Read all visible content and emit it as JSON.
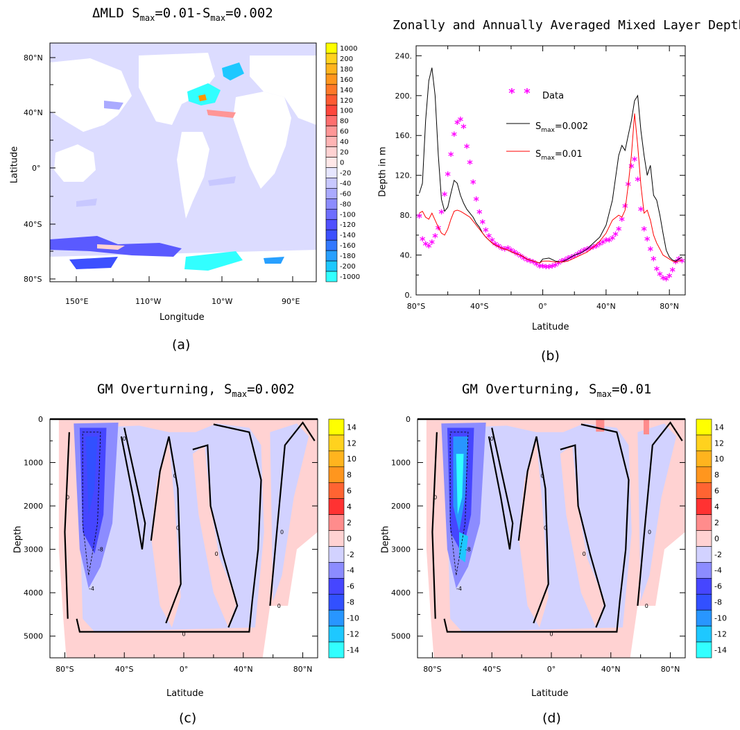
{
  "panels": {
    "a": {
      "title_main": "ΔMLD S",
      "title_sub1": "max",
      "title_mid": "=0.01-S",
      "title_sub2": "max",
      "title_end": "=0.002",
      "caption": "(a)",
      "xlabel": "Longitude",
      "ylabel": "Latitude"
    },
    "b": {
      "title": "Zonally and Annually Averaged Mixed Layer Depth",
      "caption": "(b)",
      "xlabel": "Latitude",
      "ylabel": "Depth in m"
    },
    "c": {
      "title_main": "GM Overturning, S",
      "title_sub": "max",
      "title_end": "=0.002",
      "caption": "(c)",
      "xlabel": "Latitude",
      "ylabel": "Depth"
    },
    "d": {
      "title_main": "GM Overturning, S",
      "title_sub": "max",
      "title_end": "=0.01",
      "caption": "(d)",
      "xlabel": "Latitude",
      "ylabel": "Depth"
    }
  },
  "chart_data": [
    {
      "id": "a",
      "type": "heatmap",
      "xlabel": "Longitude",
      "ylabel": "Latitude",
      "x_ticks": [
        "150°E",
        "110°W",
        "10°W",
        "90°E"
      ],
      "y_ticks": [
        "80°N",
        "40°N",
        "0°",
        "40°S",
        "80°S"
      ],
      "colorbar_labels": [
        "1000",
        "200",
        "180",
        "160",
        "140",
        "120",
        "100",
        "80",
        "60",
        "40",
        "20",
        "0",
        "-20",
        "-40",
        "-60",
        "-80",
        "-100",
        "-120",
        "-140",
        "-160",
        "-180",
        "-200",
        "-1000"
      ],
      "colorbar_colors": [
        "#ffff00",
        "#ffd21e",
        "#ffb41e",
        "#ff961e",
        "#ff7828",
        "#ff5a32",
        "#ff463c",
        "#ff6e6e",
        "#ff9696",
        "#ffb4b4",
        "#ffd2d2",
        "#ffe8e8",
        "#e6e6ff",
        "#c8c8ff",
        "#aaaaff",
        "#8c8cff",
        "#6e6eff",
        "#5050ff",
        "#3c50ff",
        "#3278ff",
        "#28a0ff",
        "#1ec8ff",
        "#32ffff"
      ]
    },
    {
      "id": "b",
      "type": "line",
      "xlabel": "Latitude",
      "ylabel": "Depth in m",
      "xlim": [
        -80,
        90
      ],
      "ylim": [
        0,
        250
      ],
      "x_ticks": [
        "80°S",
        "40°S",
        "0°",
        "40°N",
        "80°N"
      ],
      "y_ticks": [
        "0.",
        "40.",
        "80.",
        "120.",
        "160.",
        "200.",
        "240."
      ],
      "legend": [
        {
          "label": "Data",
          "sub": "",
          "tail": ""
        },
        {
          "label": "S",
          "sub": "max",
          "tail": "=0.002"
        },
        {
          "label": "S",
          "sub": "max",
          "tail": "=0.01"
        }
      ],
      "series": [
        {
          "name": "Data",
          "color": "#ff00ff",
          "style": "markers",
          "x": [
            -78,
            -76,
            -74,
            -72,
            -70,
            -68,
            -66,
            -64,
            -62,
            -60,
            -58,
            -56,
            -54,
            -52,
            -50,
            -48,
            -46,
            -44,
            -42,
            -40,
            -38,
            -36,
            -34,
            -32,
            -30,
            -28,
            -26,
            -24,
            -22,
            -20,
            -18,
            -16,
            -14,
            -12,
            -10,
            -8,
            -6,
            -4,
            -2,
            0,
            2,
            4,
            6,
            8,
            10,
            12,
            14,
            16,
            18,
            20,
            22,
            24,
            26,
            28,
            30,
            32,
            34,
            36,
            38,
            40,
            42,
            44,
            46,
            48,
            50,
            52,
            54,
            56,
            58,
            60,
            62,
            64,
            66,
            68,
            70,
            72,
            74,
            76,
            78,
            80,
            82,
            84,
            86,
            88
          ],
          "y": [
            78,
            55,
            50,
            48,
            52,
            58,
            66,
            82,
            100,
            120,
            140,
            160,
            172,
            175,
            168,
            148,
            132,
            112,
            95,
            82,
            72,
            64,
            58,
            54,
            50,
            48,
            46,
            45,
            46,
            44,
            42,
            40,
            38,
            36,
            34,
            33,
            32,
            30,
            28,
            28,
            27,
            27,
            28,
            29,
            31,
            33,
            34,
            36,
            37,
            38,
            40,
            42,
            44,
            45,
            46,
            47,
            48,
            50,
            52,
            54,
            54,
            56,
            60,
            65,
            75,
            88,
            110,
            128,
            135,
            115,
            85,
            65,
            55,
            45,
            35,
            25,
            20,
            16,
            15,
            18,
            24,
            32,
            35,
            33
          ]
        },
        {
          "name": "S_max=0.002",
          "color": "#000000",
          "style": "line",
          "x": [
            -78,
            -76,
            -74,
            -72,
            -70,
            -68,
            -66,
            -64,
            -62,
            -60,
            -58,
            -56,
            -54,
            -52,
            -50,
            -48,
            -46,
            -44,
            -42,
            -40,
            -38,
            -36,
            -34,
            -32,
            -30,
            -26,
            -22,
            -18,
            -14,
            -10,
            -6,
            -2,
            0,
            4,
            8,
            12,
            16,
            20,
            24,
            28,
            32,
            36,
            40,
            44,
            48,
            50,
            52,
            54,
            56,
            58,
            60,
            62,
            64,
            66,
            68,
            70,
            72,
            74,
            76,
            78,
            80,
            82,
            84,
            86,
            88
          ],
          "y": [
            102,
            112,
            175,
            215,
            228,
            200,
            140,
            96,
            84,
            88,
            102,
            115,
            112,
            100,
            92,
            86,
            82,
            78,
            72,
            68,
            62,
            58,
            55,
            52,
            50,
            47,
            45,
            42,
            40,
            36,
            34,
            32,
            36,
            37,
            34,
            33,
            36,
            40,
            42,
            46,
            52,
            58,
            70,
            95,
            140,
            150,
            145,
            160,
            175,
            195,
            200,
            165,
            140,
            120,
            130,
            100,
            95,
            80,
            62,
            45,
            38,
            35,
            34,
            36,
            38
          ]
        },
        {
          "name": "S_max=0.01",
          "color": "#ff0000",
          "style": "line",
          "x": [
            -78,
            -76,
            -74,
            -72,
            -70,
            -68,
            -66,
            -64,
            -62,
            -60,
            -58,
            -56,
            -54,
            -52,
            -50,
            -48,
            -46,
            -44,
            -42,
            -40,
            -38,
            -36,
            -34,
            -32,
            -30,
            -26,
            -22,
            -18,
            -14,
            -10,
            -6,
            -2,
            0,
            4,
            8,
            12,
            16,
            20,
            24,
            28,
            32,
            36,
            40,
            44,
            48,
            50,
            52,
            54,
            56,
            58,
            60,
            62,
            64,
            66,
            68,
            70,
            72,
            74,
            76,
            78,
            80,
            82,
            84,
            86,
            88
          ],
          "y": [
            82,
            84,
            78,
            76,
            82,
            75,
            68,
            62,
            60,
            66,
            76,
            84,
            85,
            84,
            82,
            80,
            78,
            74,
            70,
            66,
            62,
            58,
            55,
            52,
            50,
            47,
            45,
            42,
            40,
            36,
            34,
            32,
            34,
            34,
            33,
            33,
            34,
            37,
            40,
            43,
            48,
            54,
            62,
            75,
            80,
            78,
            85,
            110,
            140,
            182,
            150,
            110,
            82,
            85,
            75,
            60,
            52,
            46,
            40,
            38,
            36,
            34,
            33,
            34,
            35
          ]
        }
      ]
    },
    {
      "id": "c",
      "type": "heatmap",
      "xlabel": "Latitude",
      "ylabel": "Depth",
      "x_ticks": [
        "80°S",
        "40°S",
        "0°",
        "40°N",
        "80°N"
      ],
      "y_ticks": [
        "0",
        "1000",
        "2000",
        "3000",
        "4000",
        "5000"
      ],
      "colorbar_labels": [
        "14",
        "12",
        "10",
        "8",
        "6",
        "4",
        "2",
        "0",
        "-2",
        "-4",
        "-6",
        "-8",
        "-10",
        "-12",
        "-14"
      ],
      "colorbar_colors": [
        "#ffff00",
        "#ffd21e",
        "#ffb41e",
        "#ff961e",
        "#ff6432",
        "#ff3232",
        "#ff8c8c",
        "#ffd2d2",
        "#d2d2ff",
        "#8c8cff",
        "#4646ff",
        "#3250ff",
        "#2896ff",
        "#1ec8ff",
        "#32ffff"
      ],
      "contour_labels": [
        "0",
        "-4",
        "-8"
      ]
    },
    {
      "id": "d",
      "type": "heatmap",
      "xlabel": "Latitude",
      "ylabel": "Depth",
      "x_ticks": [
        "80°S",
        "40°S",
        "0°",
        "40°N",
        "80°N"
      ],
      "y_ticks": [
        "0",
        "1000",
        "2000",
        "3000",
        "4000",
        "5000"
      ],
      "colorbar_labels": [
        "14",
        "12",
        "10",
        "8",
        "6",
        "4",
        "2",
        "0",
        "-2",
        "-4",
        "-6",
        "-8",
        "-10",
        "-12",
        "-14"
      ],
      "colorbar_colors": [
        "#ffff00",
        "#ffd21e",
        "#ffb41e",
        "#ff961e",
        "#ff6432",
        "#ff3232",
        "#ff8c8c",
        "#ffd2d2",
        "#d2d2ff",
        "#8c8cff",
        "#4646ff",
        "#3250ff",
        "#2896ff",
        "#1ec8ff",
        "#32ffff"
      ],
      "contour_labels": [
        "0",
        "-4",
        "-8"
      ]
    }
  ]
}
